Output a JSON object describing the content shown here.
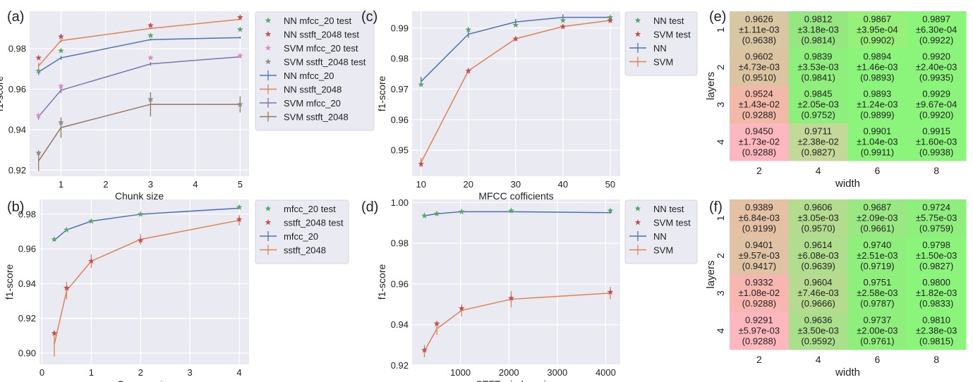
{
  "chart_data": [
    {
      "panel": "(a)",
      "type": "line",
      "xlabel": "Chunk size",
      "ylabel": "f1-score",
      "xlim": [
        0.3,
        5.2
      ],
      "ylim": [
        0.917,
        0.9985
      ],
      "xticks": [
        1,
        2,
        3,
        4,
        5
      ],
      "yticks": [
        0.92,
        0.94,
        0.96,
        0.98
      ],
      "ytick_labels": [
        "0.92",
        "0.94",
        "0.96",
        "0.98"
      ],
      "grid": true,
      "legend_position": "outside-right",
      "series": [
        {
          "name": "NN mfcc_20",
          "color": "#4c72b0",
          "x": [
            0.5,
            1,
            3,
            5
          ],
          "y": [
            0.9685,
            0.9755,
            0.9845,
            0.9855
          ],
          "err": [
            0.0015,
            0.001,
            0.0005,
            0.0005
          ]
        },
        {
          "name": "NN sstft_2048",
          "color": "#dd8452",
          "x": [
            0.5,
            1,
            3,
            5
          ],
          "y": [
            0.9715,
            0.984,
            0.99,
            0.9945
          ],
          "err": [
            0.0015,
            0.001,
            0.0005,
            0.0005
          ]
        },
        {
          "name": "SVM mfcc_20",
          "color": "#8172b3",
          "x": [
            0.5,
            1,
            3,
            5
          ],
          "y": [
            0.9465,
            0.9595,
            0.9725,
            0.976
          ],
          "err": [
            0.0015,
            0.0015,
            0.001,
            0.0005
          ]
        },
        {
          "name": "SVM sstft_2048",
          "color": "#937860",
          "x": [
            0.5,
            1,
            3,
            5
          ],
          "y": [
            0.9245,
            0.941,
            0.9525,
            0.9525
          ],
          "err": [
            0.005,
            0.005,
            0.006,
            0.004
          ]
        }
      ],
      "test_series": [
        {
          "name": "NN mfcc_20 test",
          "color": "#55a868",
          "x": [
            0.5,
            1,
            3,
            5
          ],
          "y": [
            0.969,
            0.979,
            0.9865,
            0.9895
          ]
        },
        {
          "name": "NN sstft_2048 test",
          "color": "#c44e52",
          "x": [
            0.5,
            1,
            3,
            5
          ],
          "y": [
            0.9755,
            0.986,
            0.9915,
            0.9955
          ]
        },
        {
          "name": "SVM mfcc_20 test",
          "color": "#da8bc3",
          "x": [
            0.5,
            1,
            3,
            5
          ],
          "y": [
            0.947,
            0.9615,
            0.9755,
            0.9765
          ]
        },
        {
          "name": "SVM sstft_2048 test",
          "color": "#8c8c8c",
          "x": [
            0.5,
            1,
            3,
            5
          ],
          "y": [
            0.9285,
            0.9435,
            0.955,
            0.9525
          ]
        }
      ]
    },
    {
      "panel": "(b)",
      "type": "line",
      "xlabel": "C parameter",
      "ylabel": "f1-score",
      "xlim": [
        -0.05,
        4.2
      ],
      "ylim": [
        0.8935,
        0.9885
      ],
      "xticks": [
        0,
        1,
        2,
        3,
        4
      ],
      "yticks": [
        0.9,
        0.92,
        0.94,
        0.96,
        0.98
      ],
      "ytick_labels": [
        "0.90",
        "0.92",
        "0.94",
        "0.96",
        "0.98"
      ],
      "grid": true,
      "legend_position": "outside-right",
      "series": [
        {
          "name": "mfcc_20",
          "color": "#4c72b0",
          "x": [
            0.25,
            0.5,
            1,
            2,
            4
          ],
          "y": [
            0.965,
            0.971,
            0.976,
            0.98,
            0.9835
          ],
          "err": [
            0.0005,
            0.0005,
            0.0005,
            0.0005,
            0.0005
          ]
        },
        {
          "name": "sstft_2048",
          "color": "#dd8452",
          "x": [
            0.25,
            0.5,
            1,
            2,
            4
          ],
          "y": [
            0.905,
            0.936,
            0.953,
            0.9655,
            0.9765
          ],
          "err": [
            0.007,
            0.005,
            0.004,
            0.003,
            0.003
          ]
        }
      ],
      "test_series": [
        {
          "name": "mfcc_20 test",
          "color": "#55a868",
          "x": [
            0.25,
            0.5,
            1,
            2,
            4
          ],
          "y": [
            0.9655,
            0.971,
            0.976,
            0.98,
            0.984
          ]
        },
        {
          "name": "sstft_2048 test",
          "color": "#c44e52",
          "x": [
            0.25,
            0.5,
            1,
            2,
            4
          ],
          "y": [
            0.9115,
            0.9375,
            0.953,
            0.965,
            0.977
          ]
        }
      ]
    },
    {
      "panel": "(c)",
      "type": "line",
      "xlabel": "MFCC cofficients",
      "ylabel": "f1-score",
      "xlim": [
        8.1,
        52.1
      ],
      "ylim": [
        0.9415,
        0.9955
      ],
      "xticks": [
        10,
        20,
        30,
        40,
        50
      ],
      "yticks": [
        0.95,
        0.96,
        0.97,
        0.98,
        0.99
      ],
      "ytick_labels": [
        "0.95",
        "0.96",
        "0.97",
        "0.98",
        "0.99"
      ],
      "grid": true,
      "legend_position": "outside-right",
      "series": [
        {
          "name": "NN",
          "color": "#4c72b0",
          "x": [
            10,
            20,
            30,
            40,
            50
          ],
          "y": [
            0.9725,
            0.988,
            0.992,
            0.9935,
            0.9935
          ],
          "err": [
            0.0015,
            0.0012,
            0.001,
            0.001,
            0.0005
          ]
        },
        {
          "name": "SVM",
          "color": "#dd8452",
          "x": [
            10,
            20,
            30,
            40,
            50
          ],
          "y": [
            0.946,
            0.976,
            0.9865,
            0.9905,
            0.9925
          ],
          "err": [
            0.0015,
            0.001,
            0.0008,
            0.0008,
            0.0008
          ]
        }
      ],
      "test_series": [
        {
          "name": "NN test",
          "color": "#55a868",
          "x": [
            10,
            20,
            30,
            40,
            50
          ],
          "y": [
            0.9715,
            0.9895,
            0.991,
            0.9925,
            0.9935
          ]
        },
        {
          "name": "SVM test",
          "color": "#c44e52",
          "x": [
            10,
            20,
            30,
            40,
            50
          ],
          "y": [
            0.9455,
            0.976,
            0.9865,
            0.9905,
            0.9925
          ]
        }
      ]
    },
    {
      "panel": "(d)",
      "type": "line",
      "xlabel": "STFT window size",
      "ylabel": "f1-score",
      "xlim": [
        0,
        4300
      ],
      "ylim": [
        0.9205,
        1.0015
      ],
      "xticks": [
        1000,
        2000,
        3000,
        4000
      ],
      "yticks": [
        0.92,
        0.94,
        0.96,
        0.98,
        1.0
      ],
      "ytick_labels": [
        "0.92",
        "0.94",
        "0.96",
        "0.98",
        "1.00"
      ],
      "grid": true,
      "legend_position": "outside-right",
      "series": [
        {
          "name": "NN",
          "color": "#4c72b0",
          "x": [
            256,
            512,
            1024,
            2048,
            4096
          ],
          "y": [
            0.9935,
            0.9945,
            0.9955,
            0.9955,
            0.995
          ],
          "err": [
            0.0008,
            0.0008,
            0.0005,
            0.0005,
            0.0005
          ]
        },
        {
          "name": "SVM",
          "color": "#dd8452",
          "x": [
            256,
            512,
            1024,
            2048,
            4096
          ],
          "y": [
            0.927,
            0.938,
            0.947,
            0.9525,
            0.9555
          ],
          "err": [
            0.003,
            0.003,
            0.003,
            0.004,
            0.003
          ]
        }
      ],
      "test_series": [
        {
          "name": "NN test",
          "color": "#55a868",
          "x": [
            256,
            512,
            1024,
            2048,
            4096
          ],
          "y": [
            0.9935,
            0.9945,
            0.9955,
            0.996,
            0.996
          ]
        },
        {
          "name": "SVM test",
          "color": "#c44e52",
          "x": [
            256,
            512,
            1024,
            2048,
            4096
          ],
          "y": [
            0.9275,
            0.9405,
            0.948,
            0.953,
            0.956
          ]
        }
      ]
    },
    {
      "panel": "(e)",
      "type": "heatmap",
      "xlabel": "width",
      "ylabel": "layers",
      "x_categories": [
        "2",
        "4",
        "6",
        "8"
      ],
      "y_categories": [
        "1",
        "2",
        "3",
        "4"
      ],
      "values": [
        [
          0.9626,
          0.9812,
          0.9867,
          0.9897
        ],
        [
          0.9602,
          0.9839,
          0.9894,
          0.992
        ],
        [
          0.9524,
          0.9845,
          0.9893,
          0.9929
        ],
        [
          0.945,
          0.9711,
          0.9901,
          0.9915
        ]
      ],
      "cells": [
        [
          [
            "0.9626",
            "±1.11e-03",
            "(0.9638)"
          ],
          [
            "0.9812",
            "±3.18e-03",
            "(0.9814)"
          ],
          [
            "0.9867",
            "±3.95e-04",
            "(0.9902)"
          ],
          [
            "0.9897",
            "±6.30e-04",
            "(0.9922)"
          ]
        ],
        [
          [
            "0.9602",
            "±4.73e-03",
            "(0.9510)"
          ],
          [
            "0.9839",
            "±3.53e-03",
            "(0.9841)"
          ],
          [
            "0.9894",
            "±1.46e-03",
            "(0.9893)"
          ],
          [
            "0.9920",
            "±2.40e-03",
            "(0.9935)"
          ]
        ],
        [
          [
            "0.9524",
            "±1.43e-02",
            "(0.9288)"
          ],
          [
            "0.9845",
            "±2.05e-03",
            "(0.9752)"
          ],
          [
            "0.9893",
            "±1.24e-03",
            "(0.9899)"
          ],
          [
            "0.9929",
            "±9.67e-04",
            "(0.9920)"
          ]
        ],
        [
          [
            "0.9450",
            "±1.73e-02",
            "(0.9288)"
          ],
          [
            "0.9711",
            "±2.38e-02",
            "(0.9827)"
          ],
          [
            "0.9901",
            "±1.04e-03",
            "(0.9911)"
          ],
          [
            "0.9915",
            "±1.60e-03",
            "(0.9938)"
          ]
        ]
      ],
      "colors": [
        [
          "#d9c6a3",
          "#96e682",
          "#96f07a",
          "#8af57a"
        ],
        [
          "#dcc4a2",
          "#8eef7c",
          "#8af57a",
          "#8af57a"
        ],
        [
          "#f2b8a8",
          "#8eef7c",
          "#8af57a",
          "#8af57a"
        ],
        [
          "#fdb7bf",
          "#c4d89a",
          "#8af57a",
          "#8af57a"
        ]
      ]
    },
    {
      "panel": "(f)",
      "type": "heatmap",
      "xlabel": "width",
      "ylabel": "layers",
      "x_categories": [
        "2",
        "4",
        "6",
        "8"
      ],
      "y_categories": [
        "1",
        "2",
        "3",
        "4"
      ],
      "values": [
        [
          0.9389,
          0.9606,
          0.9687,
          0.9724
        ],
        [
          0.9401,
          0.9614,
          0.974,
          0.9798
        ],
        [
          0.9332,
          0.9604,
          0.9751,
          0.98
        ],
        [
          0.9291,
          0.9636,
          0.9737,
          0.981
        ]
      ],
      "cells": [
        [
          [
            "0.9389",
            "±6.84e-03",
            "(0.9199)"
          ],
          [
            "0.9606",
            "±3.05e-03",
            "(0.9570)"
          ],
          [
            "0.9687",
            "±2.09e-03",
            "(0.9661)"
          ],
          [
            "0.9724",
            "±5.75e-03",
            "(0.9759)"
          ]
        ],
        [
          [
            "0.9401",
            "±9.57e-03",
            "(0.9417)"
          ],
          [
            "0.9614",
            "±6.08e-03",
            "(0.9639)"
          ],
          [
            "0.9740",
            "±2.51e-03",
            "(0.9719)"
          ],
          [
            "0.9798",
            "±1.50e-03",
            "(0.9827)"
          ]
        ],
        [
          [
            "0.9332",
            "±1.08e-02",
            "(0.9288)"
          ],
          [
            "0.9604",
            "±7.46e-03",
            "(0.9666)"
          ],
          [
            "0.9751",
            "±2.58e-03",
            "(0.9787)"
          ],
          [
            "0.9800",
            "±1.82e-03",
            "(0.9833)"
          ]
        ],
        [
          [
            "0.9291",
            "±5.97e-03",
            "(0.9288)"
          ],
          [
            "0.9636",
            "±3.50e-03",
            "(0.9592)"
          ],
          [
            "0.9737",
            "±2.00e-03",
            "(0.9761)"
          ],
          [
            "0.9810",
            "±2.38e-03",
            "(0.9815)"
          ]
        ]
      ],
      "colors": [
        [
          "#e4c1a5",
          "#b4dc8e",
          "#9ae884",
          "#8eef7c"
        ],
        [
          "#e0c3a4",
          "#b0dd8e",
          "#8eef7c",
          "#8af57a"
        ],
        [
          "#f8b6b0",
          "#b6db90",
          "#8eef7c",
          "#8af57a"
        ],
        [
          "#fdb7bf",
          "#aadf8c",
          "#8eef7c",
          "#8af57a"
        ]
      ]
    }
  ]
}
